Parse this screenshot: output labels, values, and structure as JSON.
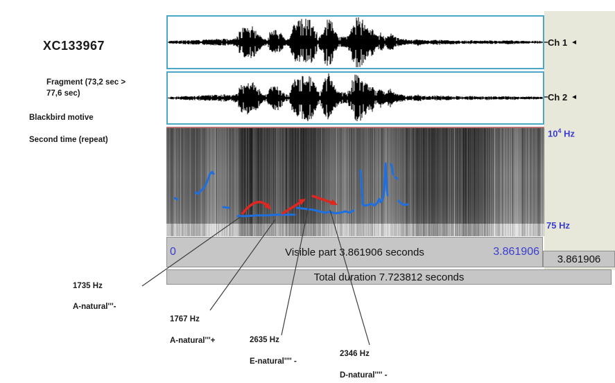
{
  "left_panel": {
    "recording_id": "XC133967",
    "fragment_line1": "Fragment (73,2 sec >",
    "fragment_line2": "77,6 sec)",
    "note_line1": "Blackbird motive",
    "note_line2": "Second time (repeat)"
  },
  "channels": [
    {
      "label": "Ch 1"
    },
    {
      "label": "Ch 2"
    }
  ],
  "speaker_icon": "◄",
  "freq_axis": {
    "top_base": "10",
    "top_exp": "4",
    "top_unit": "Hz",
    "bottom": "75 Hz"
  },
  "timeline": {
    "start": "0",
    "visible_label": "Visible part 3.861906 seconds",
    "visible_end": "3.861906",
    "selection_duration": "3.861906",
    "total_label": "Total duration 7.723812 seconds"
  },
  "annotations": [
    {
      "freq": "1735 Hz",
      "note": "A-natural'''-"
    },
    {
      "freq": "1767 Hz",
      "note": "A-natural'''+"
    },
    {
      "freq": "2635 Hz",
      "note": "E-natural'''' -"
    },
    {
      "freq": "2346 Hz",
      "note": "D-natural'''' -"
    }
  ],
  "pointer_lines": [
    [
      347,
      313,
      205,
      413
    ],
    [
      397,
      317,
      303,
      448
    ],
    [
      445,
      299,
      406,
      484
    ],
    [
      476,
      303,
      533,
      498
    ]
  ],
  "waveform": {
    "envelope": [
      [
        0,
        2
      ],
      [
        30,
        3
      ],
      [
        55,
        4
      ],
      [
        80,
        5
      ],
      [
        92,
        4
      ],
      [
        98,
        7
      ],
      [
        104,
        19
      ],
      [
        112,
        23
      ],
      [
        122,
        22
      ],
      [
        130,
        14
      ],
      [
        136,
        5
      ],
      [
        141,
        5
      ],
      [
        146,
        14
      ],
      [
        152,
        18
      ],
      [
        158,
        17
      ],
      [
        164,
        11
      ],
      [
        168,
        5
      ],
      [
        174,
        5
      ],
      [
        180,
        24
      ],
      [
        188,
        32
      ],
      [
        198,
        33
      ],
      [
        206,
        31
      ],
      [
        212,
        20
      ],
      [
        216,
        8
      ],
      [
        221,
        12
      ],
      [
        226,
        30
      ],
      [
        231,
        35
      ],
      [
        236,
        28
      ],
      [
        241,
        14
      ],
      [
        246,
        9
      ],
      [
        252,
        8
      ],
      [
        257,
        8
      ],
      [
        262,
        14
      ],
      [
        267,
        32
      ],
      [
        271,
        38
      ],
      [
        276,
        36
      ],
      [
        281,
        30
      ],
      [
        286,
        22
      ],
      [
        290,
        16
      ],
      [
        294,
        20
      ],
      [
        298,
        13
      ],
      [
        302,
        10
      ],
      [
        306,
        14
      ],
      [
        310,
        9
      ],
      [
        314,
        7
      ],
      [
        318,
        12
      ],
      [
        322,
        14
      ],
      [
        326,
        8
      ],
      [
        330,
        6
      ],
      [
        336,
        5
      ],
      [
        344,
        4
      ],
      [
        352,
        3
      ],
      [
        360,
        5
      ],
      [
        368,
        3
      ],
      [
        378,
        3
      ],
      [
        388,
        4
      ],
      [
        398,
        3
      ],
      [
        412,
        3
      ],
      [
        424,
        2
      ],
      [
        436,
        3
      ],
      [
        448,
        2
      ],
      [
        462,
        3
      ],
      [
        476,
        2
      ],
      [
        492,
        3
      ],
      [
        510,
        2
      ],
      [
        541,
        2
      ]
    ]
  },
  "spectrogram": {
    "pitch_color": "#1e6fe0",
    "arrow_color": "#e02620",
    "top_line_color": "#b97070",
    "pitch_contours": [
      [
        [
          12,
          103
        ],
        [
          16,
          105
        ]
      ],
      [
        [
          42,
          95
        ],
        [
          46,
          97
        ],
        [
          50,
          92
        ],
        [
          54,
          89
        ],
        [
          57,
          83
        ],
        [
          60,
          76
        ],
        [
          63,
          68
        ],
        [
          66,
          65
        ],
        [
          68,
          68
        ]
      ],
      [
        [
          82,
          116
        ],
        [
          90,
          117
        ]
      ],
      [
        [
          103,
          129
        ],
        [
          115,
          129
        ],
        [
          130,
          128
        ],
        [
          145,
          128
        ],
        [
          160,
          127
        ],
        [
          175,
          127
        ],
        [
          185,
          127
        ]
      ],
      [
        [
          188,
          117
        ],
        [
          196,
          118
        ],
        [
          204,
          119
        ],
        [
          212,
          120
        ],
        [
          220,
          122
        ],
        [
          228,
          124
        ],
        [
          236,
          123
        ],
        [
          244,
          125
        ],
        [
          252,
          124
        ],
        [
          258,
          122
        ],
        [
          264,
          124
        ],
        [
          270,
          121
        ]
      ],
      [
        [
          280,
          63
        ],
        [
          281,
          75
        ],
        [
          282,
          90
        ],
        [
          283,
          105
        ],
        [
          283,
          112
        ],
        [
          286,
          114
        ],
        [
          291,
          113
        ],
        [
          296,
          111
        ],
        [
          300,
          114
        ],
        [
          304,
          110
        ],
        [
          307,
          104
        ],
        [
          309,
          109
        ],
        [
          311,
          107
        ],
        [
          313,
          100
        ],
        [
          315,
          75
        ],
        [
          316,
          53
        ],
        [
          317,
          70
        ],
        [
          318,
          92
        ],
        [
          319,
          99
        ]
      ],
      [
        [
          324,
          54
        ],
        [
          326,
          61
        ],
        [
          327,
          69
        ]
      ],
      [
        [
          330,
          73
        ],
        [
          333,
          75
        ]
      ],
      [
        [
          335,
          107
        ],
        [
          339,
          111
        ],
        [
          344,
          113
        ],
        [
          348,
          112
        ]
      ]
    ],
    "red_arrow_curve": [
      [
        110,
        125
      ],
      [
        131,
        98
      ],
      [
        148,
        116
      ]
    ],
    "red_arrow_lines": [
      [
        168,
        125,
        198,
        106
      ],
      [
        211,
        100,
        243,
        111
      ]
    ],
    "red_arrow_heads": [
      [
        151,
        120,
        48
      ],
      [
        201,
        104,
        -31
      ],
      [
        247,
        113,
        26
      ]
    ]
  },
  "colors": {
    "side_panel_bg": "#e8e8da",
    "bar_bg": "#c6c6c6",
    "bar_border": "#8f8f8f",
    "accent_blue": "#3c3ccf",
    "wave_border": "#4ba7c6"
  }
}
